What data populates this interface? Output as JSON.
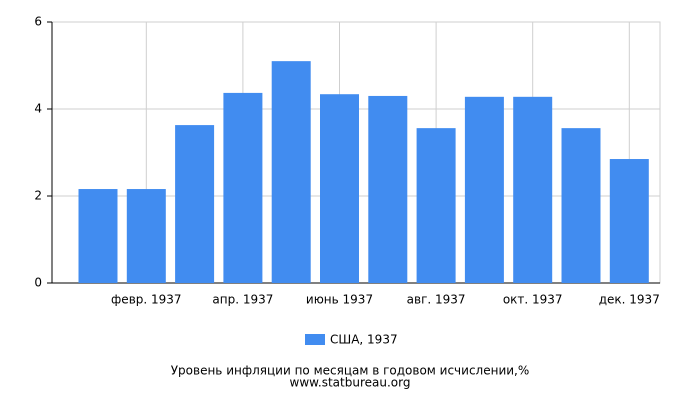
{
  "chart_data": {
    "type": "bar",
    "title": "Уровень инфляции по месяцам в годовом исчислении,%",
    "source": "www.statbureau.org",
    "categories": [
      null,
      "февр. 1937",
      null,
      "апр. 1937",
      null,
      "июнь 1937",
      null,
      "авг. 1937",
      null,
      "окт. 1937",
      null,
      "дек. 1937"
    ],
    "series": [
      {
        "name": "США, 1937",
        "color": "#418cf0",
        "values": [
          2.16,
          2.16,
          3.63,
          4.37,
          5.1,
          4.34,
          4.3,
          3.56,
          4.28,
          4.28,
          3.56,
          2.85
        ]
      }
    ],
    "ylim": [
      0,
      6
    ],
    "yticks": [
      0,
      2,
      4,
      6
    ],
    "grid": true
  }
}
